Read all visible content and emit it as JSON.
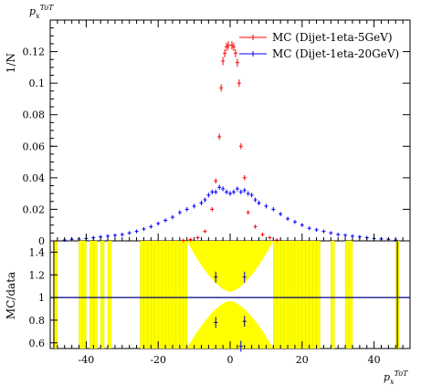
{
  "chart_data": [
    {
      "panel": "main",
      "type": "scatter",
      "title": "",
      "ylabel": "1/N",
      "ylabel_top": "p_x^{ToT}",
      "xlim": [
        -50,
        50
      ],
      "ylim": [
        0,
        0.14
      ],
      "yticks": [
        "0",
        "0.02",
        "0.04",
        "0.06",
        "0.08",
        "0.1",
        "0.12"
      ],
      "grid": false,
      "legend": "top-right",
      "series": [
        {
          "name": "MC (Dijet-1eta-5GeV)",
          "color": "#ff0000",
          "marker": "errorbar",
          "x": [
            -13,
            -11,
            -9,
            -7,
            -5,
            -4,
            -3,
            -2.5,
            -2,
            -1.5,
            -1,
            -0.5,
            0.5,
            1,
            1.5,
            2,
            2.5,
            3,
            4,
            5,
            7,
            9,
            11,
            13
          ],
          "y": [
            0.0003,
            0.0008,
            0.002,
            0.006,
            0.02,
            0.038,
            0.066,
            0.097,
            0.114,
            0.119,
            0.123,
            0.124,
            0.124,
            0.123,
            0.119,
            0.113,
            0.1,
            0.06,
            0.04,
            0.018,
            0.009,
            0.004,
            0.002,
            0.0005
          ]
        },
        {
          "name": "MC (Dijet-1eta-20GeV)",
          "color": "#0000ff",
          "marker": "errorbar",
          "x": [
            -46,
            -44,
            -42,
            -40,
            -38,
            -36,
            -34,
            -32,
            -30,
            -28,
            -26,
            -24,
            -22,
            -20,
            -18,
            -16,
            -14,
            -12,
            -10,
            -8,
            -7,
            -6,
            -5,
            -4,
            -3,
            -2,
            -1,
            0,
            1,
            2,
            3,
            4,
            5,
            6,
            7,
            8,
            10,
            12,
            14,
            16,
            18,
            20,
            22,
            24,
            26,
            28,
            30,
            32,
            34,
            36,
            38,
            40,
            42,
            44,
            46
          ],
          "y": [
            0.0005,
            0.001,
            0.0012,
            0.0015,
            0.002,
            0.0025,
            0.003,
            0.0035,
            0.004,
            0.005,
            0.006,
            0.0075,
            0.009,
            0.011,
            0.013,
            0.015,
            0.018,
            0.02,
            0.022,
            0.024,
            0.026,
            0.029,
            0.031,
            0.031,
            0.034,
            0.033,
            0.031,
            0.03,
            0.031,
            0.033,
            0.031,
            0.032,
            0.03,
            0.029,
            0.026,
            0.024,
            0.022,
            0.02,
            0.017,
            0.014,
            0.012,
            0.01,
            0.008,
            0.007,
            0.006,
            0.005,
            0.004,
            0.0035,
            0.003,
            0.0025,
            0.002,
            0.0015,
            0.0012,
            0.001,
            0.0005
          ]
        }
      ]
    },
    {
      "panel": "ratio",
      "type": "scatter",
      "ylabel": "MC/data",
      "xlabel": "p_x^{ToT}",
      "xlim": [
        -50,
        50
      ],
      "ylim": [
        0.55,
        1.5
      ],
      "yticks": [
        "0.6",
        "0.8",
        "1",
        "1.2",
        "1.4"
      ],
      "xticks": [
        "-40",
        "-20",
        "0",
        "20",
        "40"
      ],
      "reference_line": 1,
      "band_color": "#ffff00",
      "band_extents": [
        {
          "x0": -49,
          "x1": -48,
          "lo": 0.55,
          "hi": 1.5
        },
        {
          "x0": -42,
          "x1": -40,
          "lo": 0.55,
          "hi": 1.5
        },
        {
          "x0": -39,
          "x1": -37,
          "lo": 0.55,
          "hi": 1.5
        },
        {
          "x0": -36,
          "x1": -35,
          "lo": 0.55,
          "hi": 1.5
        },
        {
          "x0": -34,
          "x1": -33,
          "lo": 0.55,
          "hi": 1.5
        },
        {
          "x0": -25,
          "x1": -12,
          "lo": 0.55,
          "hi": 1.5
        },
        {
          "x0": -12,
          "x1": 12,
          "lo": 0.55,
          "hi": 1.5,
          "shape": "bowtie"
        },
        {
          "x0": 12,
          "x1": 25,
          "lo": 0.55,
          "hi": 1.5
        },
        {
          "x0": 28,
          "x1": 29,
          "lo": 0.55,
          "hi": 1.5
        },
        {
          "x0": 32,
          "x1": 34,
          "lo": 0.55,
          "hi": 1.5
        },
        {
          "x0": 46,
          "x1": 47,
          "lo": 0.55,
          "hi": 1.5
        }
      ],
      "points": [
        {
          "x": -4,
          "y": 1.18,
          "color": "#000080"
        },
        {
          "x": -4,
          "y": 0.78,
          "color": "#000080"
        },
        {
          "x": 4,
          "y": 1.18,
          "color": "#0000ff"
        },
        {
          "x": 4,
          "y": 0.79,
          "color": "#000080"
        },
        {
          "x": 3,
          "y": 0.57,
          "color": "#0000ff"
        }
      ]
    }
  ]
}
